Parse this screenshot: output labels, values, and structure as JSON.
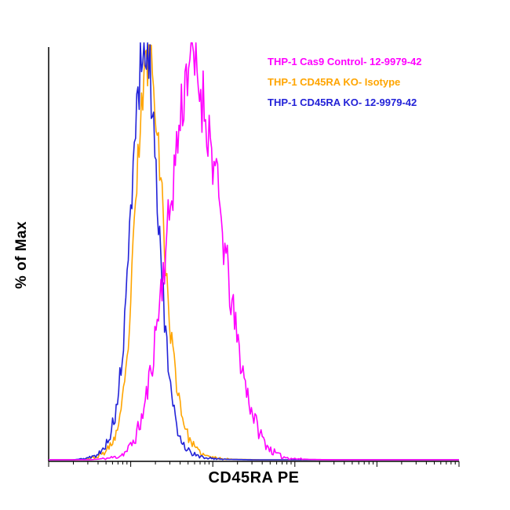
{
  "figure": {
    "xlabel": "CD45RA PE",
    "ylabel": "% of Max"
  },
  "legend": [
    {
      "label": "THP-1 Cas9 Control- 12-9979-42",
      "color": "#FF00FF"
    },
    {
      "label": "THP-1 CD45RA KO- Isotype",
      "color": "#FFA500"
    },
    {
      "label": "THP-1 CD45RA KO- 12-9979-42",
      "color": "#2222D8"
    }
  ],
  "chart_data": {
    "type": "line",
    "subtype": "flow-cytometry-histogram",
    "title": "",
    "xlabel": "CD45RA PE",
    "ylabel": "% of Max",
    "x_scale": "log",
    "x_decades": 5,
    "x_tick_labels": [],
    "ylim": [
      0,
      100
    ],
    "legend_position": "top-right",
    "grid": false,
    "axis_color": "#000000",
    "note": "x values are fractions of the unlabeled log axis (0-1); y values are % of Max",
    "series": [
      {
        "name": "THP-1 Cas9 Control- 12-9979-42",
        "color": "#FF00FF",
        "seed": 11,
        "noise": 10,
        "points": [
          [
            0,
            0
          ],
          [
            0.1,
            0
          ],
          [
            0.14,
            0.3
          ],
          [
            0.17,
            0.8
          ],
          [
            0.19,
            2
          ],
          [
            0.21,
            5
          ],
          [
            0.23,
            11
          ],
          [
            0.25,
            22
          ],
          [
            0.27,
            38
          ],
          [
            0.29,
            55
          ],
          [
            0.3,
            65
          ],
          [
            0.315,
            78
          ],
          [
            0.33,
            90
          ],
          [
            0.345,
            100
          ],
          [
            0.36,
            93
          ],
          [
            0.375,
            88
          ],
          [
            0.39,
            80
          ],
          [
            0.405,
            70
          ],
          [
            0.42,
            58
          ],
          [
            0.435,
            46
          ],
          [
            0.45,
            35
          ],
          [
            0.465,
            26
          ],
          [
            0.48,
            18
          ],
          [
            0.495,
            12
          ],
          [
            0.51,
            7.5
          ],
          [
            0.525,
            4.5
          ],
          [
            0.54,
            2.5
          ],
          [
            0.555,
            1.4
          ],
          [
            0.57,
            0.7
          ],
          [
            0.6,
            0.25
          ],
          [
            0.64,
            0.08
          ],
          [
            0.7,
            0
          ],
          [
            1,
            0
          ]
        ]
      },
      {
        "name": "THP-1 CD45RA KO- Isotype",
        "color": "#FFA500",
        "seed": 23,
        "noise": 7,
        "points": [
          [
            0,
            0
          ],
          [
            0.07,
            0
          ],
          [
            0.1,
            0.3
          ],
          [
            0.12,
            0.8
          ],
          [
            0.14,
            2
          ],
          [
            0.16,
            5
          ],
          [
            0.175,
            10
          ],
          [
            0.19,
            22
          ],
          [
            0.2,
            38
          ],
          [
            0.21,
            58
          ],
          [
            0.22,
            76
          ],
          [
            0.23,
            90
          ],
          [
            0.245,
            100
          ],
          [
            0.255,
            94
          ],
          [
            0.265,
            82
          ],
          [
            0.275,
            65
          ],
          [
            0.285,
            48
          ],
          [
            0.295,
            33
          ],
          [
            0.31,
            20
          ],
          [
            0.325,
            11
          ],
          [
            0.34,
            5.5
          ],
          [
            0.36,
            2.5
          ],
          [
            0.38,
            1
          ],
          [
            0.41,
            0.4
          ],
          [
            0.45,
            0.12
          ],
          [
            0.52,
            0
          ],
          [
            1,
            0
          ]
        ]
      },
      {
        "name": "THP-1 CD45RA KO- 12-9979-42",
        "color": "#2222D8",
        "seed": 5,
        "noise": 8,
        "points": [
          [
            0,
            0
          ],
          [
            0.06,
            0
          ],
          [
            0.09,
            0.3
          ],
          [
            0.11,
            0.8
          ],
          [
            0.13,
            2
          ],
          [
            0.15,
            6
          ],
          [
            0.165,
            12
          ],
          [
            0.18,
            25
          ],
          [
            0.19,
            40
          ],
          [
            0.2,
            60
          ],
          [
            0.21,
            78
          ],
          [
            0.22,
            92
          ],
          [
            0.23,
            99
          ],
          [
            0.24,
            100
          ],
          [
            0.25,
            90
          ],
          [
            0.26,
            74
          ],
          [
            0.27,
            55
          ],
          [
            0.28,
            38
          ],
          [
            0.29,
            24
          ],
          [
            0.3,
            14
          ],
          [
            0.315,
            7
          ],
          [
            0.33,
            3.5
          ],
          [
            0.35,
            1.5
          ],
          [
            0.37,
            0.7
          ],
          [
            0.4,
            0.3
          ],
          [
            0.44,
            0.1
          ],
          [
            0.5,
            0
          ],
          [
            1,
            0
          ]
        ]
      }
    ]
  }
}
